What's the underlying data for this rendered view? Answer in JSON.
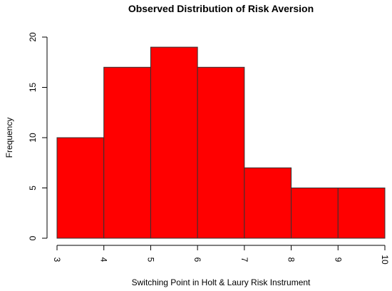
{
  "chart_data": {
    "type": "bar",
    "title": "Observed Distribution of Risk Aversion",
    "xlabel": "Switching Point in Holt & Laury Risk Instrument",
    "ylabel": "Frequency",
    "bins": [
      {
        "x0": 3,
        "x1": 4,
        "value": 10
      },
      {
        "x0": 4,
        "x1": 5,
        "value": 17
      },
      {
        "x0": 5,
        "x1": 6,
        "value": 19
      },
      {
        "x0": 6,
        "x1": 7,
        "value": 17
      },
      {
        "x0": 7,
        "x1": 8,
        "value": 7
      },
      {
        "x0": 8,
        "x1": 9,
        "value": 5
      },
      {
        "x0": 9,
        "x1": 10,
        "value": 5
      }
    ],
    "xlim": [
      3,
      10
    ],
    "ylim": [
      0,
      20
    ],
    "x_ticks": [
      "3",
      "4",
      "5",
      "6",
      "7",
      "8",
      "9",
      "10"
    ],
    "y_ticks": [
      "0",
      "5",
      "10",
      "15",
      "20"
    ],
    "grid": false,
    "legend": "none",
    "bar_color": "#ff0000",
    "bar_edge_color": "#333333"
  }
}
